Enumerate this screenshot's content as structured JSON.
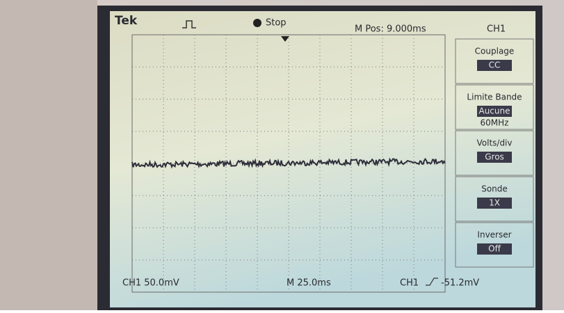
{
  "header": {
    "brand": "Tek",
    "status": "Stop",
    "position": "M Pos: 9.000ms",
    "channel": "CH1"
  },
  "menu": [
    {
      "label": "Couplage",
      "value": "CC"
    },
    {
      "label": "Limite Bande",
      "value": "Aucune",
      "extra": "60MHz"
    },
    {
      "label": "Volts/div",
      "value": "Gros"
    },
    {
      "label": "Sonde",
      "value": "1X"
    },
    {
      "label": "Inverser",
      "value": "Off"
    }
  ],
  "footer": {
    "scale": "CH1  50.0mV",
    "timebase": "M 25.0ms",
    "trigger_channel": "CH1",
    "trigger_level": "-51.2mV"
  }
}
